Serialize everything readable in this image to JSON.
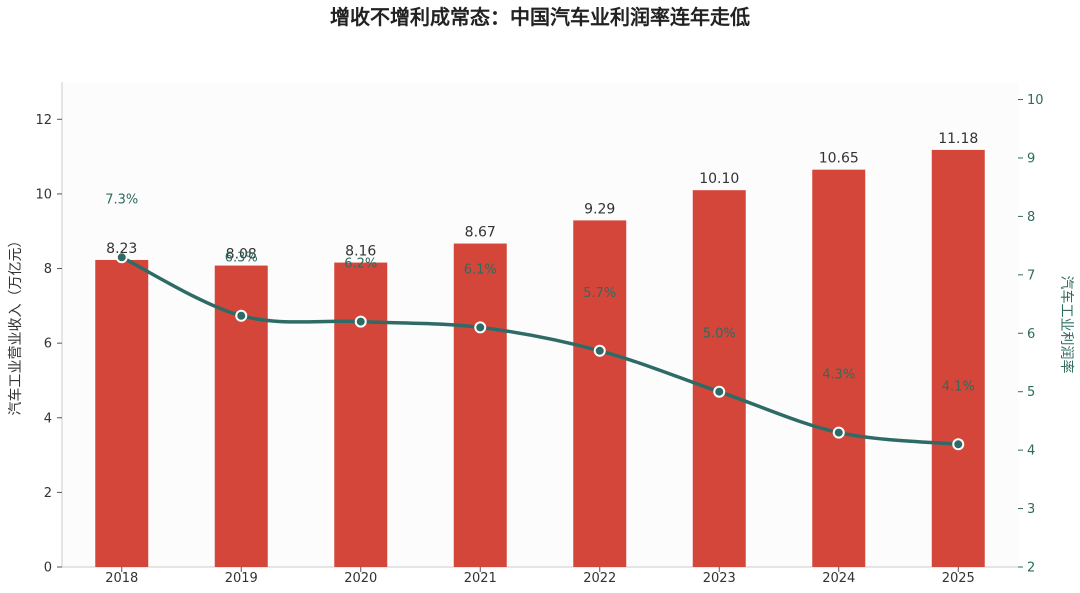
{
  "chart_data": {
    "type": "bar+line",
    "title": "增收不增利成常态：中国汽车业利润率连年走低",
    "categories": [
      "2018",
      "2019",
      "2020",
      "2021",
      "2022",
      "2023",
      "2024",
      "2025"
    ],
    "bar_series": {
      "name": "汽车工业营业收入（万亿元）",
      "values": [
        8.23,
        8.08,
        8.16,
        8.67,
        9.29,
        10.1,
        10.65,
        11.18
      ],
      "labels": [
        "8.23",
        "8.08",
        "8.16",
        "8.67",
        "9.29",
        "10.10",
        "10.65",
        "11.18"
      ],
      "color": "#d4463a"
    },
    "line_series": {
      "name": "汽车工业利润率",
      "values": [
        7.3,
        6.3,
        6.2,
        6.1,
        5.7,
        5.0,
        4.3,
        4.1
      ],
      "labels": [
        "7.3%",
        "6.3%",
        "6.2%",
        "6.1%",
        "5.7%",
        "5.0%",
        "4.3%",
        "4.1%"
      ],
      "color": "#2e6b66"
    },
    "ylabel_left": "汽车工业营业收入（万亿元）",
    "ylabel_right": "汽车工业利润率",
    "ylim_left": [
      0,
      13
    ],
    "yticks_left": [
      "0",
      "2",
      "4",
      "6",
      "8",
      "10",
      "12"
    ],
    "ylim_right": [
      2,
      10.3
    ],
    "yticks_right": [
      "2",
      "3",
      "4",
      "5",
      "6",
      "7",
      "8",
      "9",
      "10"
    ],
    "grid": false,
    "legend": "none"
  }
}
